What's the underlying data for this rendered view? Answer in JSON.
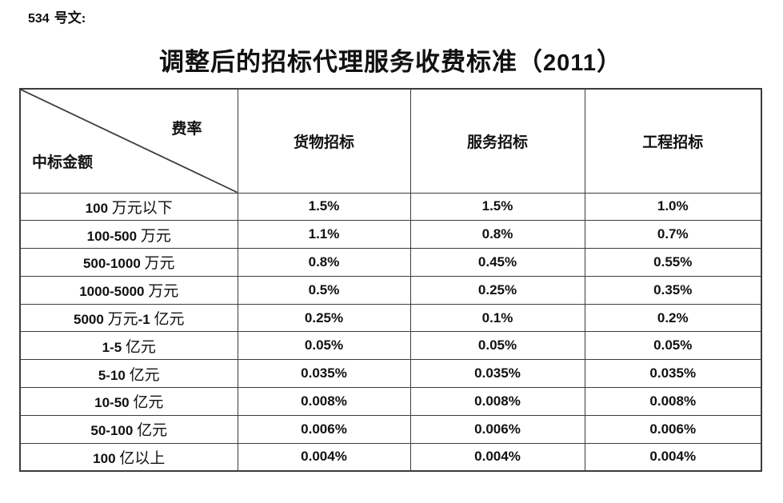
{
  "colors": {
    "background": "#ffffff",
    "text": "#111111",
    "border": "#3c3c3c"
  },
  "header": {
    "doc_number": "534",
    "doc_label": "号文:",
    "title_prefix": "调整后的招标代理服务收费标准（",
    "title_year": "2011",
    "title_suffix": "）"
  },
  "table": {
    "corner_top_right": "费率",
    "corner_bottom_left": "中标金额",
    "columns": [
      "货物招标",
      "服务招标",
      "工程招标"
    ],
    "rows": [
      {
        "amount": "100 万元以下",
        "goods": "1.5%",
        "services": "1.5%",
        "engineering": "1.0%"
      },
      {
        "amount": "100-500 万元",
        "goods": "1.1%",
        "services": "0.8%",
        "engineering": "0.7%"
      },
      {
        "amount": "500-1000 万元",
        "goods": "0.8%",
        "services": "0.45%",
        "engineering": "0.55%"
      },
      {
        "amount": "1000-5000 万元",
        "goods": "0.5%",
        "services": "0.25%",
        "engineering": "0.35%"
      },
      {
        "amount": "5000 万元-1 亿元",
        "goods": "0.25%",
        "services": "0.1%",
        "engineering": "0.2%"
      },
      {
        "amount": "1-5 亿元",
        "goods": "0.05%",
        "services": "0.05%",
        "engineering": "0.05%"
      },
      {
        "amount": "5-10 亿元",
        "goods": "0.035%",
        "services": "0.035%",
        "engineering": "0.035%"
      },
      {
        "amount": "10-50 亿元",
        "goods": "0.008%",
        "services": "0.008%",
        "engineering": "0.008%"
      },
      {
        "amount": "50-100 亿元",
        "goods": "0.006%",
        "services": "0.006%",
        "engineering": "0.006%"
      },
      {
        "amount": "100 亿以上",
        "goods": "0.004%",
        "services": "0.004%",
        "engineering": "0.004%"
      }
    ]
  }
}
